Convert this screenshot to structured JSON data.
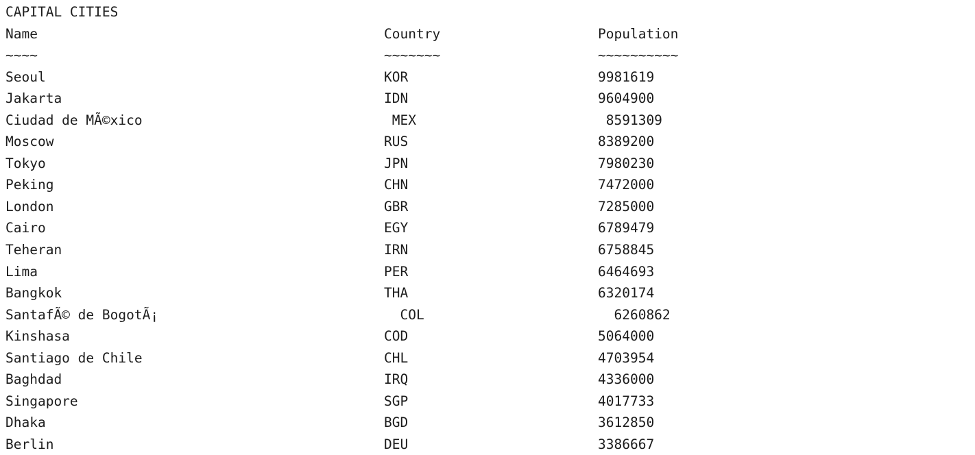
{
  "title": "CAPITAL CITIES",
  "headers": {
    "name": "Name",
    "country": "Country",
    "population": "Population"
  },
  "underlines": {
    "name": "~~~~",
    "country": "~~~~~~~",
    "population": "~~~~~~~~~~"
  },
  "rows": [
    {
      "name": "Seoul",
      "country": "KOR",
      "population": "9981619"
    },
    {
      "name": "Jakarta",
      "country": "IDN",
      "population": "9604900"
    },
    {
      "name": "Ciudad de MÃ©xico",
      "country": " MEX",
      "population": " 8591309"
    },
    {
      "name": "Moscow",
      "country": "RUS",
      "population": "8389200"
    },
    {
      "name": "Tokyo",
      "country": "JPN",
      "population": "7980230"
    },
    {
      "name": "Peking",
      "country": "CHN",
      "population": "7472000"
    },
    {
      "name": "London",
      "country": "GBR",
      "population": "7285000"
    },
    {
      "name": "Cairo",
      "country": "EGY",
      "population": "6789479"
    },
    {
      "name": "Teheran",
      "country": "IRN",
      "population": "6758845"
    },
    {
      "name": "Lima",
      "country": "PER",
      "population": "6464693"
    },
    {
      "name": "Bangkok",
      "country": "THA",
      "population": "6320174"
    },
    {
      "name": "SantafÃ© de BogotÃ¡",
      "country": "  COL",
      "population": "  6260862"
    },
    {
      "name": "Kinshasa",
      "country": "COD",
      "population": "5064000"
    },
    {
      "name": "Santiago de Chile",
      "country": "CHL",
      "population": "4703954"
    },
    {
      "name": "Baghdad",
      "country": "IRQ",
      "population": "4336000"
    },
    {
      "name": "Singapore",
      "country": "SGP",
      "population": "4017733"
    },
    {
      "name": "Dhaka",
      "country": "BGD",
      "population": "3612850"
    },
    {
      "name": "Berlin",
      "country": "DEU",
      "population": "3386667"
    }
  ]
}
